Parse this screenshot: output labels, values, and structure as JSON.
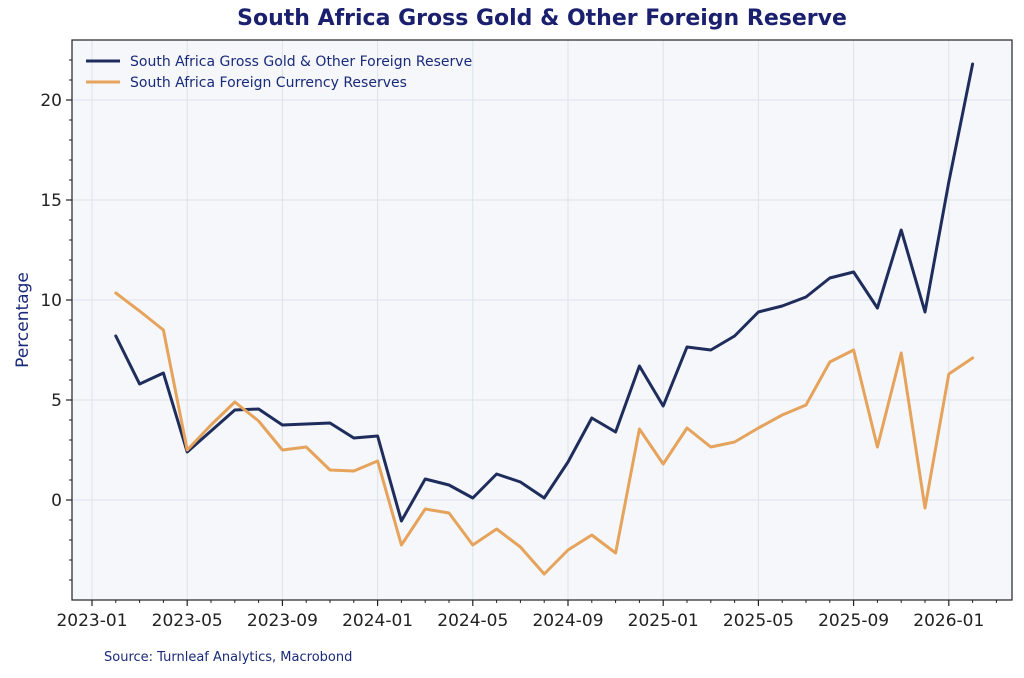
{
  "chart_data": {
    "type": "line",
    "title": "South Africa Gross Gold & Other Foreign Reserve",
    "xlabel": "",
    "ylabel": "Percentage",
    "ylim": [
      -5,
      23
    ],
    "yticks": [
      0,
      5,
      10,
      15,
      20
    ],
    "x_tick_labels": [
      "2023-01",
      "2023-05",
      "2023-09",
      "2024-01",
      "2024-05",
      "2024-09",
      "2025-01",
      "2025-05",
      "2025-09",
      "2026-01"
    ],
    "x": [
      "2023-02",
      "2023-03",
      "2023-04",
      "2023-05",
      "2023-06",
      "2023-07",
      "2023-08",
      "2023-09",
      "2023-10",
      "2023-11",
      "2023-12",
      "2024-01",
      "2024-02",
      "2024-03",
      "2024-04",
      "2024-05",
      "2024-06",
      "2024-07",
      "2024-08",
      "2024-09",
      "2024-10",
      "2024-11",
      "2024-12",
      "2025-01",
      "2025-02",
      "2025-03",
      "2025-04",
      "2025-05",
      "2025-06",
      "2025-07",
      "2025-08",
      "2025-09",
      "2025-10",
      "2025-11",
      "2025-12",
      "2026-01",
      "2026-02"
    ],
    "series": [
      {
        "name": "South Africa Gross Gold & Other Foreign Reserve",
        "color": "#1f2d5c",
        "values": [
          8.2,
          5.8,
          6.35,
          2.4,
          3.45,
          4.5,
          4.55,
          3.75,
          3.8,
          3.85,
          3.1,
          3.2,
          -1.05,
          1.05,
          0.75,
          0.1,
          1.3,
          0.9,
          0.1,
          1.9,
          4.1,
          3.4,
          6.7,
          4.7,
          7.65,
          7.5,
          8.2,
          9.4,
          9.7,
          10.15,
          11.1,
          11.4,
          9.6,
          13.5,
          9.4,
          15.9,
          21.8
        ]
      },
      {
        "name": "South Africa Foreign Currency Reserves",
        "color": "#e5a35c",
        "values": [
          10.35,
          9.45,
          8.5,
          2.5,
          3.75,
          4.9,
          3.95,
          2.5,
          2.65,
          1.5,
          1.45,
          1.95,
          -2.25,
          -0.45,
          -0.65,
          -2.25,
          -1.45,
          -2.35,
          -3.7,
          -2.5,
          -1.75,
          -2.65,
          3.55,
          1.8,
          3.6,
          2.65,
          2.9,
          3.6,
          4.25,
          4.75,
          6.9,
          7.5,
          2.65,
          7.35,
          -0.4,
          6.3,
          7.1
        ]
      }
    ],
    "legend_position": "top-left",
    "grid": true
  },
  "source": "Source: Turnleaf Analytics, Macrobond"
}
